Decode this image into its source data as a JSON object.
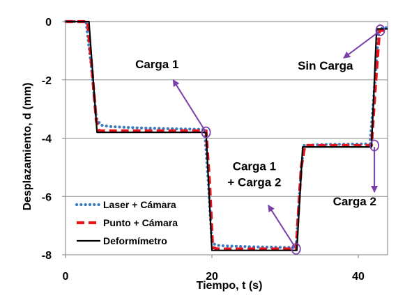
{
  "chart_data": {
    "type": "line",
    "title": "",
    "xlabel": "Tiempo, t (s)",
    "ylabel": "Desplazamiento, d (mm)",
    "xlim": [
      0,
      44
    ],
    "ylim": [
      -8,
      0
    ],
    "xticks": [
      0,
      20,
      40
    ],
    "yticks": [
      0,
      -2,
      -4,
      -6,
      -8
    ],
    "grid": "horizontal",
    "legend_position": "lower-left",
    "series": [
      {
        "name": "Laser + Cámara",
        "style": "dotted",
        "color": "#3a7cc4",
        "x": [
          0,
          2.8,
          3.5,
          4.2,
          4.8,
          6,
          10,
          15,
          19.0,
          19.5,
          20.0,
          20.8,
          22,
          26,
          30,
          31.5,
          32.2,
          32.6,
          35,
          40,
          41.6,
          42.3,
          42.8,
          44
        ],
        "y": [
          0,
          0,
          -1.5,
          -3.3,
          -3.55,
          -3.6,
          -3.65,
          -3.68,
          -3.7,
          -5.5,
          -7.6,
          -7.68,
          -7.7,
          -7.73,
          -7.75,
          -7.75,
          -5.0,
          -4.25,
          -4.22,
          -4.2,
          -4.2,
          -2.0,
          -0.25,
          -0.2
        ]
      },
      {
        "name": "Punto + Cámara",
        "style": "dashed",
        "color": "#e8141c",
        "x": [
          0,
          3.0,
          3.6,
          4.2,
          4.6,
          10,
          15,
          19.2,
          19.7,
          20.1,
          20.8,
          26,
          31.5,
          32.2,
          32.7,
          40,
          41.8,
          42.4,
          42.9,
          44
        ],
        "y": [
          0,
          0,
          -1.6,
          -3.4,
          -3.75,
          -3.75,
          -3.75,
          -3.75,
          -5.6,
          -7.75,
          -7.8,
          -7.8,
          -7.8,
          -5.0,
          -4.25,
          -4.25,
          -4.25,
          -2.0,
          -0.3,
          -0.3
        ]
      },
      {
        "name": "Deformímetro",
        "style": "solid",
        "color": "#000000",
        "x": [
          0,
          3.2,
          4.3,
          19.2,
          20.0,
          31.6,
          32.4,
          41.8,
          42.5,
          44
        ],
        "y": [
          0,
          0,
          -3.8,
          -3.8,
          -7.85,
          -7.85,
          -4.3,
          -4.3,
          -0.25,
          -0.25
        ]
      }
    ],
    "annotations": [
      {
        "text": "Carga 1",
        "x": 12.5,
        "y": -1.6,
        "target_x": 19.2,
        "target_y": -3.8
      },
      {
        "text": "Carga 1",
        "x": 25.8,
        "y": -5.1,
        "target_x": 31.6,
        "target_y": -7.8
      },
      {
        "text": "+ Carga 2",
        "x": 25.8,
        "y": -5.65,
        "target_x": 31.6,
        "target_y": -7.8
      },
      {
        "text": "Sin Carga",
        "x": 35.5,
        "y": -1.65,
        "target_x": 43.0,
        "target_y": -0.3
      },
      {
        "text": "Carga 2",
        "x": 39.5,
        "y": -6.3,
        "target_x": 42.2,
        "target_y": -4.25
      }
    ]
  }
}
